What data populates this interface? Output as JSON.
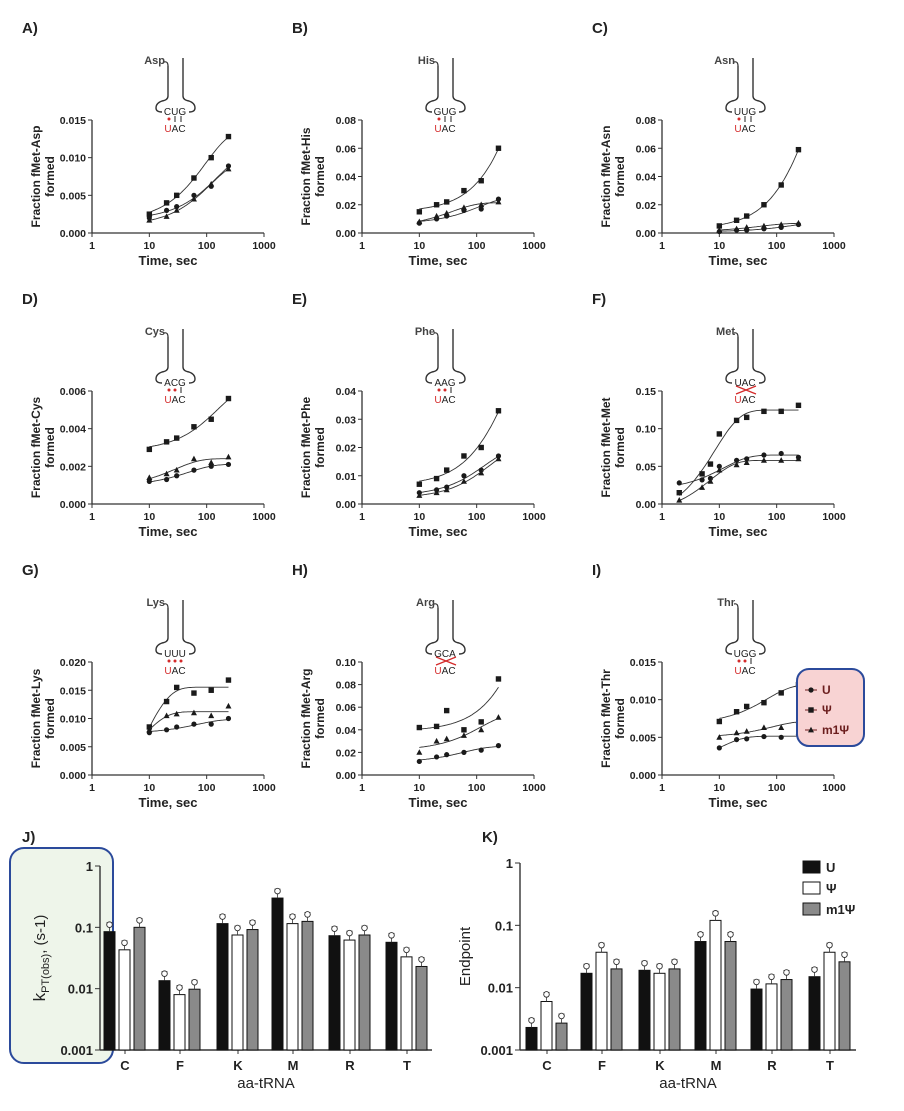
{
  "colors": {
    "curve": "#333333",
    "marker": "#1a1a1a",
    "red": "#d42a2a",
    "bar_U": "#111111",
    "bar_psi": "#ffffff",
    "bar_m1psi": "#8a8a8a",
    "legend_fill": "#f8d3d3",
    "legend_border": "#2b4a9b",
    "hl_fill": "#eef5ea",
    "hl_border": "#2b4a9b"
  },
  "legend_curves": {
    "items": [
      {
        "label": "U",
        "marker": "circle"
      },
      {
        "label": "Ψ",
        "marker": "square"
      },
      {
        "label": "m1Ψ",
        "marker": "triangle"
      }
    ]
  },
  "chart_data": [
    {
      "id": "A",
      "label": "A)",
      "type": "scatter",
      "aa": "Asp",
      "codon": "CUG",
      "anticodon": "UAC",
      "pairing": [
        "dot",
        "tick",
        "tick"
      ],
      "ylabel": "Fraction fMet-Asp",
      "ylabel2": "formed",
      "xlabel": "Time, sec",
      "xscale": "log",
      "xlim": [
        1,
        1000
      ],
      "xticks": [
        "1",
        "10",
        "100",
        "1000"
      ],
      "ylim": [
        0,
        0.015
      ],
      "yticks": [
        "0.000",
        "0.005",
        "0.010",
        "0.015"
      ],
      "x": [
        10,
        20,
        30,
        60,
        120,
        240
      ],
      "series": [
        {
          "name": "U",
          "marker": "circle",
          "values": [
            0.002,
            0.003,
            0.0035,
            0.005,
            0.0062,
            0.0089
          ]
        },
        {
          "name": "Ψ",
          "marker": "square",
          "values": [
            0.0025,
            0.004,
            0.005,
            0.0073,
            0.01,
            0.0128
          ]
        },
        {
          "name": "m1Ψ",
          "marker": "triangle",
          "values": [
            0.0017,
            0.0022,
            0.003,
            0.0045,
            0.0065,
            0.0085
          ]
        }
      ]
    },
    {
      "id": "B",
      "label": "B)",
      "type": "scatter",
      "aa": "His",
      "codon": "GUG",
      "anticodon": "UAC",
      "pairing": [
        "dot",
        "tick",
        "tick"
      ],
      "ylabel": "Fraction fMet-His",
      "ylabel2": "formed",
      "xlabel": "Time, sec",
      "xscale": "log",
      "xlim": [
        1,
        1000
      ],
      "xticks": [
        "1",
        "10",
        "100",
        "1000"
      ],
      "ylim": [
        0,
        0.08
      ],
      "yticks": [
        "0.00",
        "0.02",
        "0.04",
        "0.06",
        "0.08"
      ],
      "x": [
        10,
        20,
        30,
        60,
        120,
        240
      ],
      "series": [
        {
          "name": "U",
          "marker": "circle",
          "values": [
            0.007,
            0.01,
            0.012,
            0.016,
            0.017,
            0.024
          ]
        },
        {
          "name": "Ψ",
          "marker": "square",
          "values": [
            0.015,
            0.02,
            0.022,
            0.03,
            0.037,
            0.06
          ]
        },
        {
          "name": "m1Ψ",
          "marker": "triangle",
          "values": [
            0.008,
            0.012,
            0.014,
            0.018,
            0.02,
            0.022
          ]
        }
      ]
    },
    {
      "id": "C",
      "label": "C)",
      "type": "scatter",
      "aa": "Asn",
      "codon": "UUG",
      "anticodon": "UAC",
      "pairing": [
        "dot",
        "tick",
        "tick"
      ],
      "ylabel": "Fraction fMet-Asn",
      "ylabel2": "formed",
      "xlabel": "Time, sec",
      "xscale": "log",
      "xlim": [
        1,
        1000
      ],
      "xticks": [
        "1",
        "10",
        "100",
        "1000"
      ],
      "ylim": [
        0,
        0.08
      ],
      "yticks": [
        "0.00",
        "0.02",
        "0.04",
        "0.06",
        "0.08"
      ],
      "x": [
        10,
        20,
        30,
        60,
        120,
        240
      ],
      "series": [
        {
          "name": "U",
          "marker": "circle",
          "values": [
            0.001,
            0.002,
            0.002,
            0.003,
            0.004,
            0.006
          ]
        },
        {
          "name": "Ψ",
          "marker": "square",
          "values": [
            0.005,
            0.009,
            0.012,
            0.02,
            0.034,
            0.059
          ]
        },
        {
          "name": "m1Ψ",
          "marker": "triangle",
          "values": [
            0.002,
            0.003,
            0.004,
            0.005,
            0.006,
            0.007
          ]
        }
      ]
    },
    {
      "id": "D",
      "label": "D)",
      "type": "scatter",
      "aa": "Cys",
      "codon": "ACG",
      "anticodon": "UAC",
      "pairing": [
        "dot",
        "dot",
        "tick"
      ],
      "ylabel": "Fraction fMet-Cys",
      "ylabel2": "formed",
      "xlabel": "Time, sec",
      "xscale": "log",
      "xlim": [
        1,
        1000
      ],
      "xticks": [
        "1",
        "10",
        "100",
        "1000"
      ],
      "ylim": [
        0,
        0.006
      ],
      "yticks": [
        "0.000",
        "0.002",
        "0.004",
        "0.006"
      ],
      "x": [
        10,
        20,
        30,
        60,
        120,
        240
      ],
      "series": [
        {
          "name": "U",
          "marker": "circle",
          "values": [
            0.0012,
            0.0013,
            0.0015,
            0.0018,
            0.002,
            0.0021
          ]
        },
        {
          "name": "Ψ",
          "marker": "square",
          "values": [
            0.0029,
            0.0033,
            0.0035,
            0.0041,
            0.0045,
            0.0056
          ]
        },
        {
          "name": "m1Ψ",
          "marker": "triangle",
          "values": [
            0.0014,
            0.0016,
            0.0018,
            0.0024,
            0.0022,
            0.0025
          ]
        }
      ]
    },
    {
      "id": "E",
      "label": "E)",
      "type": "scatter",
      "aa": "Phe",
      "codon": "AAG",
      "anticodon": "UAC",
      "pairing": [
        "dot",
        "dot",
        "tick"
      ],
      "ylabel": "Fraction fMet-Phe",
      "ylabel2": "formed",
      "xlabel": "Time, sec",
      "xscale": "log",
      "xlim": [
        1,
        1000
      ],
      "xticks": [
        "1",
        "10",
        "100",
        "1000"
      ],
      "ylim": [
        0,
        0.04
      ],
      "yticks": [
        "0.00",
        "0.01",
        "0.02",
        "0.03",
        "0.04"
      ],
      "x": [
        10,
        20,
        30,
        60,
        120,
        240
      ],
      "series": [
        {
          "name": "U",
          "marker": "circle",
          "values": [
            0.004,
            0.005,
            0.006,
            0.01,
            0.012,
            0.017
          ]
        },
        {
          "name": "Ψ",
          "marker": "square",
          "values": [
            0.007,
            0.009,
            0.012,
            0.017,
            0.02,
            0.033
          ]
        },
        {
          "name": "m1Ψ",
          "marker": "triangle",
          "values": [
            0.003,
            0.004,
            0.005,
            0.008,
            0.011,
            0.016
          ]
        }
      ]
    },
    {
      "id": "F",
      "label": "F)",
      "type": "scatter",
      "aa": "Met",
      "codon": "UAC",
      "anticodon": "UAC",
      "pairing": [
        "cross"
      ],
      "ylabel": "Fraction fMet-Met",
      "ylabel2": "formed",
      "xlabel": "Time, sec",
      "xscale": "log",
      "xlim": [
        1,
        1000
      ],
      "xticks": [
        "1",
        "10",
        "100",
        "1000"
      ],
      "ylim": [
        0,
        0.15
      ],
      "yticks": [
        "0.00",
        "0.05",
        "0.10",
        "0.15"
      ],
      "x": [
        2,
        5,
        7,
        10,
        20,
        30,
        60,
        120,
        240
      ],
      "series": [
        {
          "name": "U",
          "marker": "circle",
          "values": [
            0.028,
            0.032,
            0.034,
            0.05,
            0.058,
            0.06,
            0.065,
            0.067,
            0.062
          ]
        },
        {
          "name": "Ψ",
          "marker": "square",
          "values": [
            0.015,
            0.04,
            0.053,
            0.093,
            0.111,
            0.115,
            0.123,
            0.123,
            0.131
          ]
        },
        {
          "name": "m1Ψ",
          "marker": "triangle",
          "values": [
            0.005,
            0.022,
            0.03,
            0.045,
            0.052,
            0.055,
            0.058,
            0.058,
            0.06
          ]
        }
      ]
    },
    {
      "id": "G",
      "label": "G)",
      "type": "scatter",
      "aa": "Lys",
      "codon": "UUU",
      "anticodon": "UAC",
      "pairing": [
        "dot",
        "dot",
        "dot"
      ],
      "ylabel": "Fraction fMet-Lys",
      "ylabel2": "formed",
      "xlabel": "Time, sec",
      "xscale": "log",
      "xlim": [
        1,
        1000
      ],
      "xticks": [
        "1",
        "10",
        "100",
        "1000"
      ],
      "ylim": [
        0,
        0.02
      ],
      "yticks": [
        "0.000",
        "0.005",
        "0.010",
        "0.015",
        "0.020"
      ],
      "x": [
        10,
        20,
        30,
        60,
        120,
        240
      ],
      "series": [
        {
          "name": "U",
          "marker": "circle",
          "values": [
            0.0075,
            0.008,
            0.0085,
            0.009,
            0.009,
            0.01
          ]
        },
        {
          "name": "Ψ",
          "marker": "square",
          "values": [
            0.0085,
            0.013,
            0.0155,
            0.0145,
            0.015,
            0.0168
          ]
        },
        {
          "name": "m1Ψ",
          "marker": "triangle",
          "values": [
            0.008,
            0.0105,
            0.0108,
            0.011,
            0.0105,
            0.0122
          ]
        }
      ]
    },
    {
      "id": "H",
      "label": "H)",
      "type": "scatter",
      "aa": "Arg",
      "codon": "GCA",
      "anticodon": "UAC",
      "pairing": [
        "cross"
      ],
      "ylabel": "Fraction fMet-Arg",
      "ylabel2": "formed",
      "xlabel": "Time, sec",
      "xscale": "log",
      "xlim": [
        1,
        1000
      ],
      "xticks": [
        "1",
        "10",
        "100",
        "1000"
      ],
      "ylim": [
        0,
        0.1
      ],
      "yticks": [
        "0.00",
        "0.02",
        "0.04",
        "0.06",
        "0.08",
        "0.10"
      ],
      "x": [
        10,
        20,
        30,
        60,
        120,
        240
      ],
      "series": [
        {
          "name": "U",
          "marker": "circle",
          "values": [
            0.012,
            0.016,
            0.018,
            0.02,
            0.022,
            0.026
          ]
        },
        {
          "name": "Ψ",
          "marker": "square",
          "values": [
            0.042,
            0.043,
            0.057,
            0.04,
            0.047,
            0.085
          ]
        },
        {
          "name": "m1Ψ",
          "marker": "triangle",
          "values": [
            0.02,
            0.03,
            0.032,
            0.035,
            0.04,
            0.051
          ]
        }
      ]
    },
    {
      "id": "I",
      "label": "I)",
      "type": "scatter",
      "aa": "Thr",
      "codon": "UGG",
      "anticodon": "UAC",
      "pairing": [
        "dot",
        "dot",
        "tick"
      ],
      "ylabel": "Fraction fMet-Thr",
      "ylabel2": "formed",
      "xlabel": "Time, sec",
      "xscale": "log",
      "xlim": [
        1,
        1000
      ],
      "xticks": [
        "1",
        "10",
        "100",
        "1000"
      ],
      "ylim": [
        0,
        0.015
      ],
      "yticks": [
        "0.000",
        "0.005",
        "0.010",
        "0.015"
      ],
      "x": [
        10,
        20,
        30,
        60,
        120,
        240
      ],
      "series": [
        {
          "name": "U",
          "marker": "circle",
          "values": [
            0.0036,
            0.0047,
            0.0048,
            0.0051,
            0.005,
            0.0054
          ]
        },
        {
          "name": "Ψ",
          "marker": "square",
          "values": [
            0.0071,
            0.0084,
            0.0091,
            0.0096,
            0.0109,
            0.012
          ]
        },
        {
          "name": "m1Ψ",
          "marker": "triangle",
          "values": [
            0.005,
            0.0056,
            0.0058,
            0.0063,
            0.0063,
            0.0072
          ]
        }
      ]
    },
    {
      "id": "J",
      "label": "J)",
      "type": "bar",
      "yscale": "log",
      "ylim": [
        0.001,
        1
      ],
      "yticks": [
        "0.001",
        "0.01",
        "0.1",
        "1"
      ],
      "ylabel": "kPT(obs), (s-1)",
      "ylabel_main": "k",
      "ylabel_sub": "PT(obs)",
      "ylabel_rest": ", (s-1)",
      "xlabel": "aa-tRNA",
      "categories": [
        "C",
        "F",
        "K",
        "M",
        "R",
        "T"
      ],
      "series": [
        {
          "name": "U",
          "values": [
            0.085,
            0.0135,
            0.115,
            0.3,
            0.073,
            0.057
          ]
        },
        {
          "name": "Ψ",
          "values": [
            0.043,
            0.008,
            0.075,
            0.115,
            0.062,
            0.033
          ]
        },
        {
          "name": "m1Ψ",
          "values": [
            0.1,
            0.0098,
            0.092,
            0.125,
            0.075,
            0.023
          ]
        }
      ]
    },
    {
      "id": "K",
      "label": "K)",
      "type": "bar",
      "yscale": "log",
      "ylim": [
        0.001,
        1
      ],
      "yticks": [
        "0.001",
        "0.01",
        "0.1",
        "1"
      ],
      "ylabel": "Endpoint",
      "xlabel": "aa-tRNA",
      "categories": [
        "C",
        "F",
        "K",
        "M",
        "R",
        "T"
      ],
      "legend": "top-right",
      "series": [
        {
          "name": "U",
          "values": [
            0.0023,
            0.017,
            0.019,
            0.055,
            0.0095,
            0.015
          ]
        },
        {
          "name": "Ψ",
          "values": [
            0.006,
            0.037,
            0.017,
            0.12,
            0.0115,
            0.037
          ]
        },
        {
          "name": "m1Ψ",
          "values": [
            0.0027,
            0.02,
            0.02,
            0.055,
            0.0135,
            0.026
          ]
        }
      ]
    }
  ]
}
